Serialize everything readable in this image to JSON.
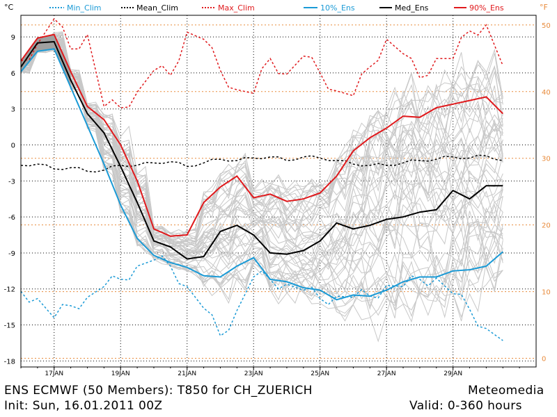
{
  "chart_data": {
    "type": "line",
    "left_axis_unit": "°C",
    "right_axis_unit": "°F",
    "y_range": [
      -18.5,
      10.8
    ],
    "x_range_hours": [
      0,
      372
    ],
    "y_ticks_c": [
      9,
      6,
      3,
      0,
      -3,
      -6,
      -9,
      -12,
      -15,
      -18
    ],
    "y_ticks_f": [
      50,
      40,
      30,
      20,
      10,
      0
    ],
    "x_ticks": [
      {
        "label": "17JAN",
        "hour": 24
      },
      {
        "label": "19JAN",
        "hour": 72
      },
      {
        "label": "21JAN",
        "hour": 120
      },
      {
        "label": "23JAN",
        "hour": 168
      },
      {
        "label": "25JAN",
        "hour": 216
      },
      {
        "label": "27JAN",
        "hour": 264
      },
      {
        "label": "29JAN",
        "hour": 312
      }
    ],
    "legend": [
      {
        "key": "min_clim",
        "label": "Min_Clim",
        "color": "#1a9ad6",
        "dash": "3,3"
      },
      {
        "key": "mean_clim",
        "label": "Mean_Clim",
        "color": "#000000",
        "dash": "3,3"
      },
      {
        "key": "max_clim",
        "label": "Max_Clim",
        "color": "#e0191c",
        "dash": "3,3"
      },
      {
        "key": "p10",
        "label": "10%_Ens",
        "color": "#1a9ad6",
        "dash": ""
      },
      {
        "key": "median",
        "label": "Med_Ens",
        "color": "#000000",
        "dash": ""
      },
      {
        "key": "p90",
        "label": "90%_Ens",
        "color": "#e0191c",
        "dash": ""
      }
    ],
    "ens_hours": [
      0,
      12,
      24,
      36,
      48,
      60,
      72,
      84,
      96,
      108,
      120,
      132,
      144,
      156,
      168,
      180,
      192,
      204,
      216,
      228,
      240,
      252,
      264,
      276,
      288,
      300,
      312,
      324,
      336,
      348
    ],
    "series": [
      {
        "key": "p90",
        "values": [
          7.0,
          8.9,
          9.2,
          6.1,
          3.2,
          2.1,
          0.0,
          -3.0,
          -7.0,
          -7.6,
          -7.5,
          -4.8,
          -3.5,
          -2.6,
          -4.4,
          -4.1,
          -4.7,
          -4.5,
          -4.0,
          -2.6,
          -0.5,
          0.6,
          1.4,
          2.4,
          2.3,
          3.1,
          3.4,
          3.7,
          4.0,
          2.6
        ]
      },
      {
        "key": "median",
        "values": [
          6.5,
          8.5,
          8.6,
          5.4,
          2.6,
          1.0,
          -1.8,
          -4.8,
          -8.0,
          -8.5,
          -9.5,
          -9.3,
          -7.2,
          -6.7,
          -7.5,
          -9.0,
          -9.1,
          -8.8,
          -8.0,
          -6.5,
          -7.0,
          -6.7,
          -6.2,
          -6.0,
          -5.6,
          -5.4,
          -3.8,
          -4.5,
          -3.4,
          -3.4
        ]
      },
      {
        "key": "p10",
        "values": [
          6.1,
          7.8,
          8.0,
          4.8,
          1.6,
          -1.6,
          -5.0,
          -7.8,
          -9.2,
          -9.8,
          -10.2,
          -10.9,
          -11.0,
          -10.1,
          -9.4,
          -11.2,
          -11.4,
          -11.9,
          -12.1,
          -12.9,
          -12.5,
          -12.6,
          -12.1,
          -11.4,
          -11.0,
          -11.0,
          -10.5,
          -10.4,
          -10.1,
          -8.9
        ]
      },
      {
        "key": "max_clim",
        "values": [
          7.0,
          8.4,
          10.5,
          8.0,
          9.2,
          3.2,
          3.1,
          4.4,
          6.2,
          5.8,
          9.4,
          8.8,
          6.2,
          4.6,
          4.3,
          7.2,
          5.9,
          7.4,
          6.0,
          4.5,
          4.1,
          6.5,
          8.8,
          7.6,
          5.6,
          7.2,
          7.2,
          9.5,
          10.0,
          6.6
        ]
      },
      {
        "key": "mean_clim",
        "values": [
          -1.7,
          -1.6,
          -2.0,
          -1.9,
          -2.2,
          -2.1,
          -1.7,
          -1.7,
          -1.5,
          -1.4,
          -1.8,
          -1.5,
          -1.2,
          -1.3,
          -1.1,
          -1.0,
          -1.3,
          -1.0,
          -1.1,
          -1.3,
          -1.6,
          -1.7,
          -1.7,
          -1.5,
          -1.3,
          -1.2,
          -1.0,
          -1.1,
          -0.9,
          -1.3
        ]
      },
      {
        "key": "min_clim",
        "values": [
          -12.2,
          -12.8,
          -14.4,
          -13.4,
          -12.7,
          -11.8,
          -11.2,
          -10.1,
          -9.6,
          -10.1,
          -11.8,
          -13.6,
          -15.9,
          -13.8,
          -11.0,
          -11.2,
          -11.6,
          -12.1,
          -12.8,
          -12.6,
          -12.7,
          -12.6,
          -11.7,
          -11.8,
          -11.2,
          -11.1,
          -12.4,
          -13.7,
          -15.3,
          -16.3
        ]
      }
    ]
  },
  "footer": {
    "left_line1": "ENS ECMWF (50 Members): T850 for CH_ZUERICH",
    "left_line2": "Init: Sun, 16.01.2011 00Z",
    "right_line1": "Meteomedia",
    "right_line2": "Valid: 0-360 hours"
  }
}
